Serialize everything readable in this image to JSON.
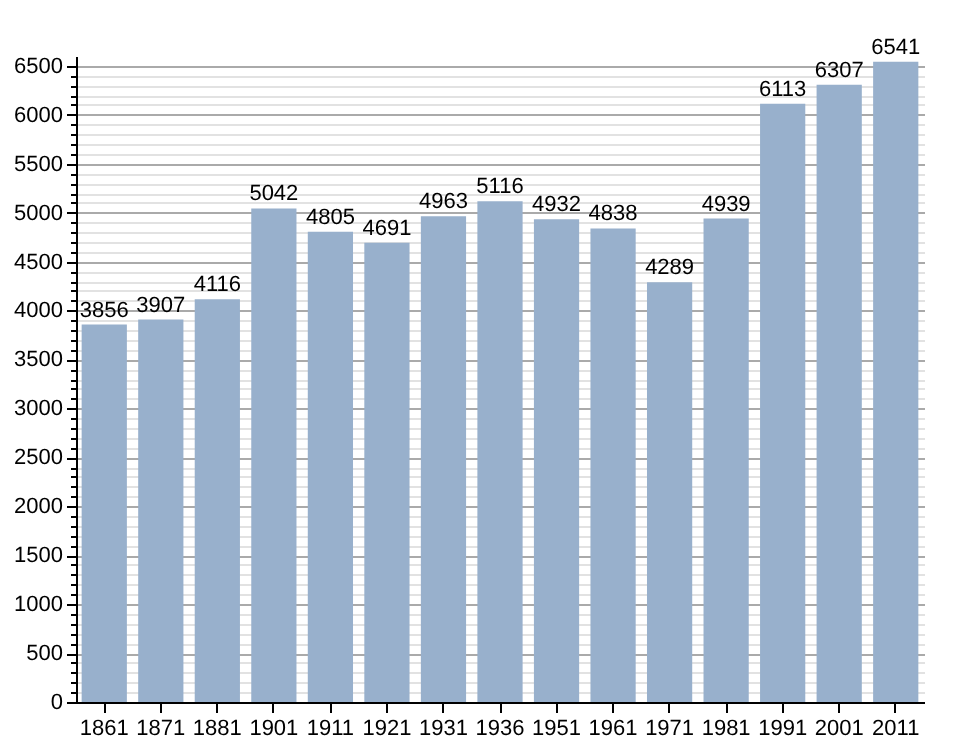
{
  "chart_data": {
    "type": "bar",
    "categories": [
      "1861",
      "1871",
      "1881",
      "1901",
      "1911",
      "1921",
      "1931",
      "1936",
      "1951",
      "1961",
      "1971",
      "1981",
      "1991",
      "2001",
      "2011"
    ],
    "values": [
      3856,
      3907,
      4116,
      5042,
      4805,
      4691,
      4963,
      5116,
      4932,
      4838,
      4289,
      4939,
      6113,
      6307,
      6541
    ],
    "color": "#98b0cc",
    "data_labels": true,
    "grid": "y",
    "ylim": [
      0,
      6600
    ],
    "yticks": [
      0,
      {
        "value": 100,
        "label": null
      },
      {
        "value": 200,
        "label": null
      },
      {
        "value": 300,
        "label": null
      },
      {
        "value": 400,
        "label": null
      },
      500,
      {
        "value": 600,
        "label": null
      },
      {
        "value": 700,
        "label": null
      },
      {
        "value": 800,
        "label": null
      },
      {
        "value": 900,
        "label": null
      },
      1000,
      {
        "value": 1100,
        "label": null
      },
      {
        "value": 1200,
        "label": null
      },
      {
        "value": 1300,
        "label": null
      },
      {
        "value": 1400,
        "label": null
      },
      1500,
      {
        "value": 1600,
        "label": null
      },
      {
        "value": 1700,
        "label": null
      },
      {
        "value": 1800,
        "label": null
      },
      {
        "value": 1900,
        "label": null
      },
      2000,
      {
        "value": 2100,
        "label": null
      },
      {
        "value": 2200,
        "label": null
      },
      {
        "value": 2300,
        "label": null
      },
      {
        "value": 2400,
        "label": null
      },
      2500,
      {
        "value": 2600,
        "label": null
      },
      {
        "value": 2700,
        "label": null
      },
      {
        "value": 2800,
        "label": null
      },
      {
        "value": 2900,
        "label": null
      },
      3000,
      {
        "value": 3100,
        "label": null
      },
      {
        "value": 3200,
        "label": null
      },
      {
        "value": 3300,
        "label": null
      },
      {
        "value": 3400,
        "label": null
      },
      3500,
      {
        "value": 3600,
        "label": null
      },
      {
        "value": 3700,
        "label": null
      },
      {
        "value": 3800,
        "label": null
      },
      {
        "value": 3900,
        "label": null
      },
      4000,
      {
        "value": 4100,
        "label": null
      },
      {
        "value": 4200,
        "label": null
      },
      {
        "value": 4300,
        "label": null
      },
      {
        "value": 4400,
        "label": null
      },
      4500,
      {
        "value": 4600,
        "label": null
      },
      {
        "value": 4700,
        "label": null
      },
      {
        "value": 4800,
        "label": null
      },
      {
        "value": 4900,
        "label": null
      },
      5000,
      {
        "value": 5100,
        "label": null
      },
      {
        "value": 5200,
        "label": null
      },
      {
        "value": 5300,
        "label": null
      },
      {
        "value": 5400,
        "label": null
      },
      5500,
      {
        "value": 5600,
        "label": null
      },
      {
        "value": 5700,
        "label": null
      },
      {
        "value": 5800,
        "label": null
      },
      {
        "value": 5900,
        "label": null
      },
      6000,
      {
        "value": 6100,
        "label": null
      },
      {
        "value": 6200,
        "label": null
      },
      {
        "value": 6300,
        "label": null
      },
      {
        "value": 6400,
        "label": null
      },
      6500
    ]
  }
}
